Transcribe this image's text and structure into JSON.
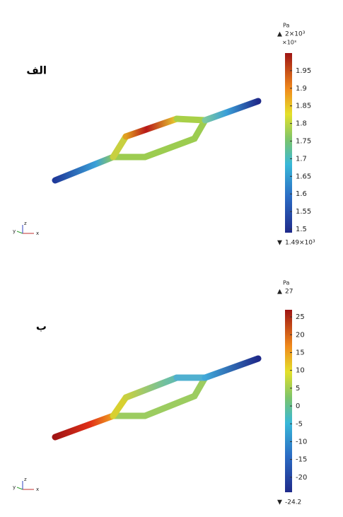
{
  "triad": [
    "x",
    "y",
    "z"
  ],
  "panels": [
    {
      "label": "الف",
      "unit": "Pa",
      "max_label": "2×10³",
      "multiplier": "×10³",
      "min_label": "1.49×10³",
      "clim": [
        1.49,
        2.0
      ],
      "ticks": [
        1.5,
        1.55,
        1.6,
        1.65,
        1.7,
        1.75,
        1.8,
        1.85,
        1.9,
        1.95
      ]
    },
    {
      "label": "ب",
      "unit": "Pa",
      "max_label": "27",
      "min_label": "-24.2",
      "clim": [
        -24.2,
        27
      ],
      "ticks": [
        -20,
        -15,
        -10,
        -5,
        0,
        5,
        10,
        15,
        20,
        25
      ]
    }
  ]
}
